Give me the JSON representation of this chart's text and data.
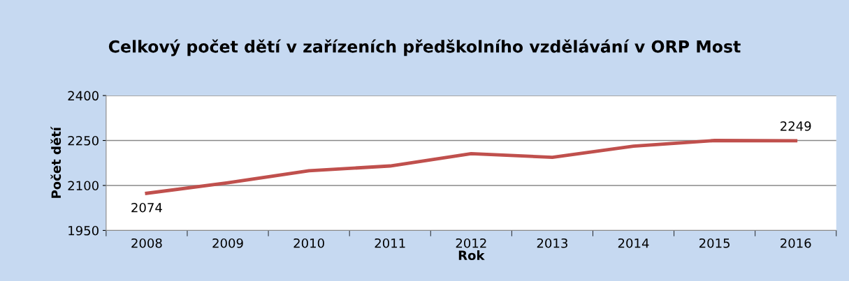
{
  "chart_data": {
    "type": "line",
    "title": "Celkový počet dětí v zařízeních předškolního vzdělávání v ORP Most",
    "xlabel": "Rok",
    "ylabel": "Počet dětí",
    "categories": [
      "2008",
      "2009",
      "2010",
      "2011",
      "2012",
      "2013",
      "2014",
      "2015",
      "2016"
    ],
    "series": [
      {
        "color": "#c0504d",
        "values": [
          2074,
          2109,
          2149,
          2165,
          2206,
          2194,
          2231,
          2250,
          2249
        ],
        "value_labels": [
          "2074",
          null,
          null,
          null,
          null,
          null,
          null,
          null,
          "2249"
        ]
      }
    ],
    "ylim": [
      1950,
      2400
    ],
    "yticks": [
      1950,
      2100,
      2250,
      2400
    ],
    "grid": "y",
    "legend": false,
    "marker": "none",
    "line_style": "solid"
  }
}
